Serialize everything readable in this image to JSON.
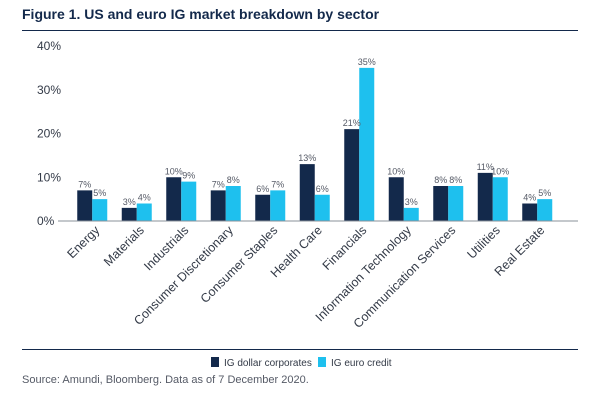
{
  "figure": {
    "title": "Figure 1. US and euro IG market breakdown by sector",
    "source": "Source: Amundi, Bloomberg. Data as of 7 December 2020."
  },
  "chart_data": {
    "type": "bar",
    "title": "Figure 1. US and euro IG market breakdown by sector",
    "categories": [
      "Energy",
      "Materials",
      "Industrials",
      "Consumer Discretionary",
      "Consumer Staples",
      "Health Care",
      "Financials",
      "Information Technology",
      "Communication Services",
      "Utilities",
      "Real Estate"
    ],
    "series": [
      {
        "name": "IG dollar corporates",
        "color": "#13294b",
        "values": [
          7,
          3,
          10,
          7,
          6,
          13,
          21,
          10,
          8,
          11,
          4
        ]
      },
      {
        "name": "IG euro credit",
        "color": "#1ec0ee",
        "values": [
          5,
          4,
          9,
          8,
          7,
          6,
          35,
          3,
          8,
          10,
          5
        ]
      }
    ],
    "yticks": [
      "0%",
      "10%",
      "20%",
      "30%",
      "40%"
    ],
    "ylim": [
      0,
      40
    ],
    "value_suffix": "%",
    "grid": false,
    "legend": "bottom-center"
  }
}
